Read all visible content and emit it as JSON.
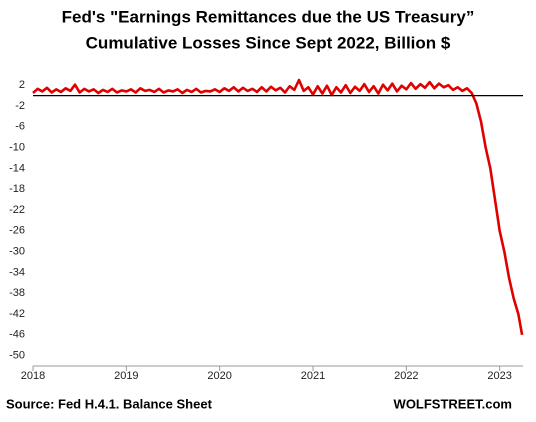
{
  "chart_data": {
    "type": "line",
    "title": [
      "Fed's \"Earnings Remittances due the US Treasury”",
      "Cumulative Losses Since Sept 2022, Billion $"
    ],
    "source": "Source: Fed H.4.1. Balance Sheet",
    "credit": "WOLFSTREET.com",
    "color": "#e00000",
    "reference_line": 0,
    "x": [
      2018,
      2018.05,
      2018.1,
      2018.15,
      2018.2,
      2018.25,
      2018.3,
      2018.35,
      2018.4,
      2018.45,
      2018.5,
      2018.55,
      2018.6,
      2018.65,
      2018.7,
      2018.75,
      2018.8,
      2018.85,
      2018.9,
      2018.95,
      2019,
      2019.05,
      2019.1,
      2019.15,
      2019.2,
      2019.25,
      2019.3,
      2019.35,
      2019.4,
      2019.45,
      2019.5,
      2019.55,
      2019.6,
      2019.65,
      2019.7,
      2019.75,
      2019.8,
      2019.85,
      2019.9,
      2019.95,
      2020,
      2020.05,
      2020.1,
      2020.15,
      2020.2,
      2020.25,
      2020.3,
      2020.35,
      2020.4,
      2020.45,
      2020.5,
      2020.55,
      2020.6,
      2020.65,
      2020.7,
      2020.75,
      2020.8,
      2020.85,
      2020.9,
      2020.95,
      2021,
      2021.05,
      2021.1,
      2021.15,
      2021.2,
      2021.25,
      2021.3,
      2021.35,
      2021.4,
      2021.45,
      2021.5,
      2021.55,
      2021.6,
      2021.65,
      2021.7,
      2021.75,
      2021.8,
      2021.85,
      2021.9,
      2021.95,
      2022,
      2022.05,
      2022.1,
      2022.15,
      2022.2,
      2022.25,
      2022.3,
      2022.35,
      2022.4,
      2022.45,
      2022.5,
      2022.55,
      2022.6,
      2022.65,
      2022.7,
      2022.75,
      2022.8,
      2022.85,
      2022.9,
      2022.95,
      2023,
      2023.05,
      2023.1,
      2023.15,
      2023.2,
      2023.24
    ],
    "values": [
      0.5,
      1.3,
      0.8,
      1.5,
      0.6,
      1.2,
      0.7,
      1.4,
      0.9,
      2.1,
      0.6,
      1.3,
      0.8,
      1.2,
      0.5,
      1.1,
      0.7,
      1.3,
      0.6,
      1.0,
      0.8,
      1.2,
      0.6,
      1.4,
      0.9,
      1.1,
      0.7,
      1.3,
      0.6,
      1.0,
      0.8,
      1.2,
      0.5,
      1.1,
      0.7,
      1.3,
      0.6,
      0.9,
      0.8,
      1.2,
      0.7,
      1.4,
      0.9,
      1.6,
      0.8,
      1.5,
      0.9,
      1.3,
      0.7,
      1.6,
      0.8,
      1.7,
      1.0,
      1.5,
      0.6,
      1.8,
      1.1,
      3.0,
      0.9,
      1.6,
      0.2,
      1.8,
      0.4,
      1.9,
      0.1,
      1.6,
      0.6,
      2.0,
      0.5,
      1.7,
      0.9,
      2.2,
      0.7,
      1.8,
      0.4,
      2.1,
      1.0,
      2.3,
      0.8,
      1.9,
      1.2,
      2.4,
      1.3,
      2.2,
      1.5,
      2.6,
      1.4,
      2.3,
      1.6,
      2.0,
      1.1,
      1.6,
      0.9,
      1.4,
      0.5,
      -1.5,
      -5,
      -10,
      -14,
      -20,
      -26,
      -30,
      -35,
      -39,
      -42,
      -46
    ],
    "xlim": [
      2018,
      2023.25
    ],
    "xticks": [
      2018,
      2019,
      2020,
      2021,
      2022,
      2023
    ],
    "ylim": [
      -52,
      3
    ],
    "yticks": [
      2,
      -2,
      -6,
      -10,
      -14,
      -18,
      -22,
      -26,
      -30,
      -34,
      -38,
      -42,
      -46,
      -50
    ],
    "grid": false
  }
}
